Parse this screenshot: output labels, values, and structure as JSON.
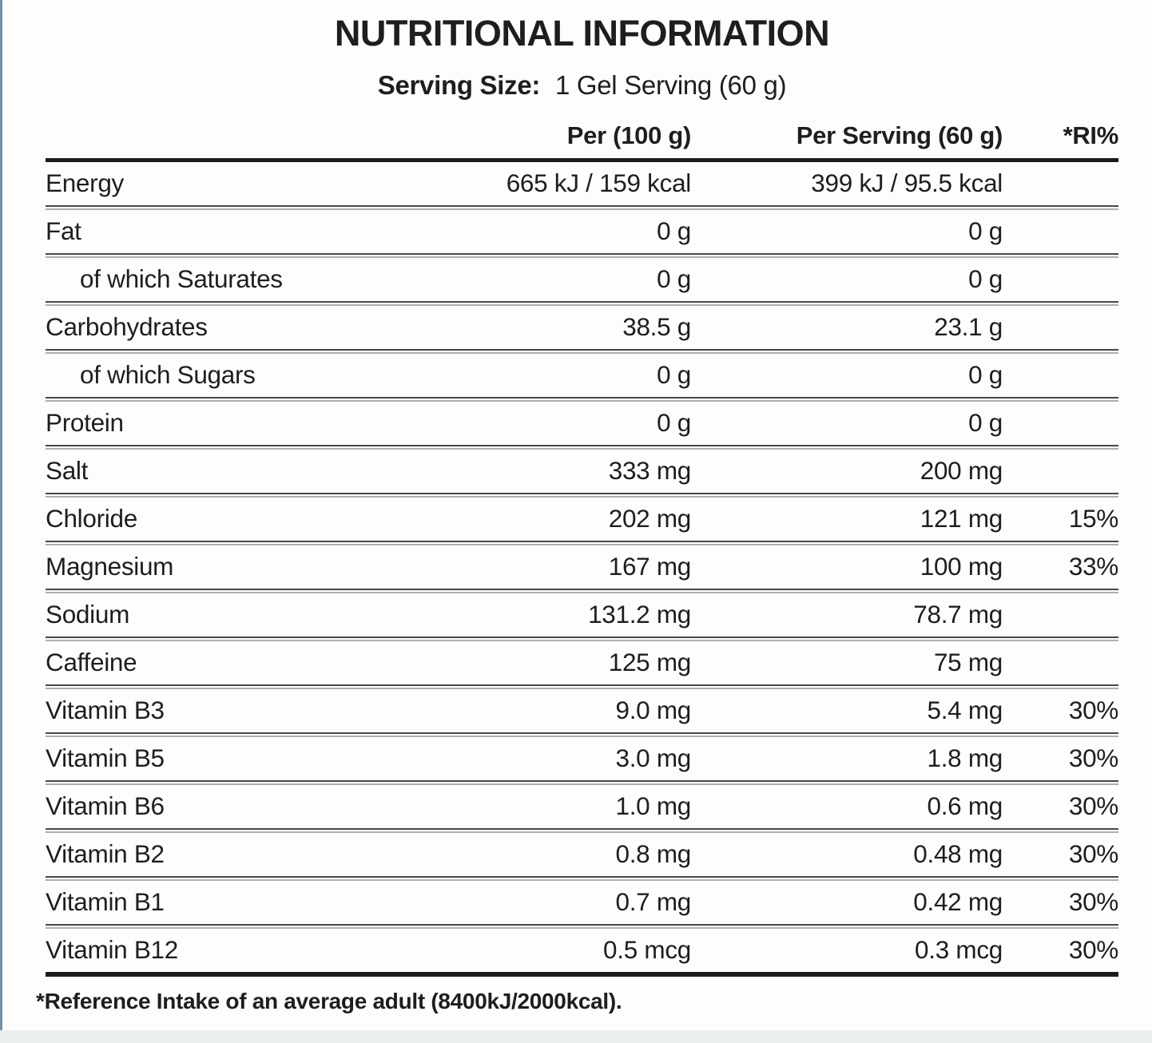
{
  "header": {
    "title": "NUTRITIONAL INFORMATION",
    "serving_size_label": "Serving Size:",
    "serving_size_value": "1 Gel Serving (60 g)"
  },
  "columns": {
    "per_100g": "Per (100 g)",
    "per_serving": "Per Serving (60 g)",
    "ri_percent": "*RI%"
  },
  "rows": [
    {
      "label": "Energy",
      "indent": false,
      "per_100g": "665 kJ / 159 kcal",
      "per_serving": "399 kJ / 95.5 kcal",
      "ri_percent": ""
    },
    {
      "label": "Fat",
      "indent": false,
      "per_100g": "0 g",
      "per_serving": "0 g",
      "ri_percent": ""
    },
    {
      "label": "of which Saturates",
      "indent": true,
      "per_100g": "0 g",
      "per_serving": "0 g",
      "ri_percent": ""
    },
    {
      "label": "Carbohydrates",
      "indent": false,
      "per_100g": "38.5 g",
      "per_serving": "23.1 g",
      "ri_percent": ""
    },
    {
      "label": "of which Sugars",
      "indent": true,
      "per_100g": "0 g",
      "per_serving": "0 g",
      "ri_percent": ""
    },
    {
      "label": "Protein",
      "indent": false,
      "per_100g": "0 g",
      "per_serving": "0 g",
      "ri_percent": ""
    },
    {
      "label": "Salt",
      "indent": false,
      "per_100g": "333 mg",
      "per_serving": "200 mg",
      "ri_percent": ""
    },
    {
      "label": "Chloride",
      "indent": false,
      "per_100g": "202 mg",
      "per_serving": "121 mg",
      "ri_percent": "15%"
    },
    {
      "label": "Magnesium",
      "indent": false,
      "per_100g": "167 mg",
      "per_serving": "100 mg",
      "ri_percent": "33%"
    },
    {
      "label": "Sodium",
      "indent": false,
      "per_100g": "131.2 mg",
      "per_serving": "78.7 mg",
      "ri_percent": ""
    },
    {
      "label": "Caffeine",
      "indent": false,
      "per_100g": "125 mg",
      "per_serving": "75 mg",
      "ri_percent": ""
    },
    {
      "label": "Vitamin B3",
      "indent": false,
      "per_100g": "9.0 mg",
      "per_serving": "5.4 mg",
      "ri_percent": "30%"
    },
    {
      "label": "Vitamin B5",
      "indent": false,
      "per_100g": "3.0 mg",
      "per_serving": "1.8 mg",
      "ri_percent": "30%"
    },
    {
      "label": "Vitamin B6",
      "indent": false,
      "per_100g": "1.0 mg",
      "per_serving": "0.6 mg",
      "ri_percent": "30%"
    },
    {
      "label": "Vitamin B2",
      "indent": false,
      "per_100g": "0.8 mg",
      "per_serving": "0.48 mg",
      "ri_percent": "30%"
    },
    {
      "label": "Vitamin B1",
      "indent": false,
      "per_100g": "0.7 mg",
      "per_serving": "0.42 mg",
      "ri_percent": "30%"
    },
    {
      "label": "Vitamin B12",
      "indent": false,
      "per_100g": "0.5 mcg",
      "per_serving": "0.3 mcg",
      "ri_percent": "30%"
    }
  ],
  "footnote": "*Reference Intake of an average adult (8400kJ/2000kcal).",
  "colors": {
    "text": "#1e1e1c",
    "accent_edge": "#7390ac",
    "rule_heavy": "#1c1c1c",
    "rule_dark": "#474747",
    "rule_light": "#aeaeae",
    "bottom_band": "#edf0f1",
    "page_bg": "#fdfdfc"
  }
}
